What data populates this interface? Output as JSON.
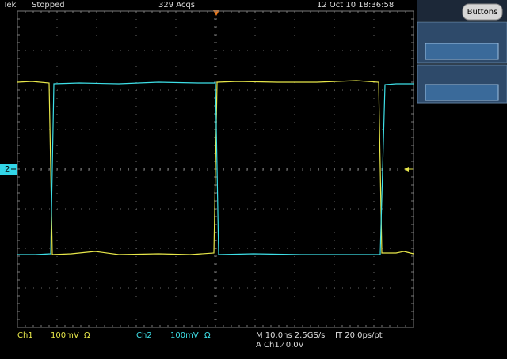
{
  "status_bar": {
    "brand": "Tek",
    "state": "Stopped",
    "acquisitions": "329 Acqs",
    "datetime": "12 Oct 10 18:36:58"
  },
  "side_panel": {
    "button": "Buttons"
  },
  "markers": {
    "channel2": "2"
  },
  "readout": {
    "ch1": {
      "name": "Ch1",
      "scale": "100mV",
      "coupling": "Ω"
    },
    "ch2": {
      "name": "Ch2",
      "scale": "100mV",
      "coupling": "Ω"
    },
    "timebase": "M 10.0ns 2.5GS/s",
    "interpolation": "IT 20.0ps/pt",
    "trigger": "A Ch1 ⁄ 0.0V"
  }
}
